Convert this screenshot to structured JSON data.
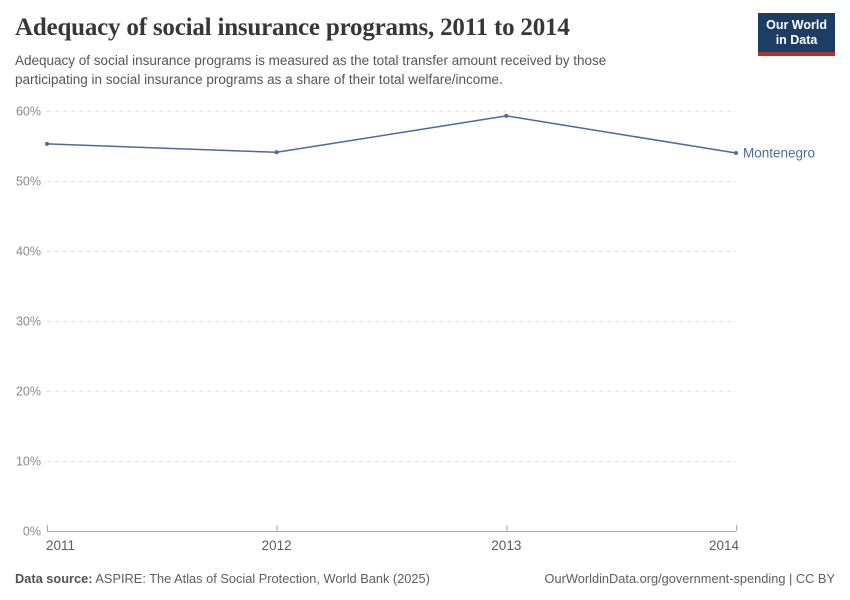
{
  "header": {
    "title": "Adequacy of social insurance programs, 2011 to 2014",
    "subtitle": "Adequacy of social insurance programs is measured as the total transfer amount received by those participating in social insurance programs as a share of their total welfare/income.",
    "logo": {
      "line1": "Our World",
      "line2": "in Data",
      "bg_color": "#1d3d63",
      "accent_color": "#b0322a"
    }
  },
  "chart_data": {
    "type": "line",
    "title": "Adequacy of social insurance programs, 2011 to 2014",
    "x": [
      2011,
      2012,
      2013,
      2014
    ],
    "x_tick_labels": [
      "2011",
      "2012",
      "2013",
      "2014"
    ],
    "series": [
      {
        "name": "Montenegro",
        "values": [
          55.3,
          54.1,
          59.3,
          54.0
        ],
        "color": "#4c6a9c"
      }
    ],
    "ylim": [
      0,
      60
    ],
    "y_ticks": [
      0,
      10,
      20,
      30,
      40,
      50,
      60
    ],
    "y_tick_format": "{}%",
    "xlabel": "",
    "ylabel": "",
    "grid": true,
    "grid_color": "#dcdcdc",
    "axis_color": "#a8a8a8",
    "y_label_color": "#8b8b8b",
    "x_label_color": "#5b5b5b",
    "legend_position": "end-of-line"
  },
  "footer": {
    "datasource_label": "Data source:",
    "datasource_text": " ASPIRE: The Atlas of Social Protection, World Bank (2025)",
    "credit": "OurWorldinData.org/government-spending | CC BY"
  }
}
